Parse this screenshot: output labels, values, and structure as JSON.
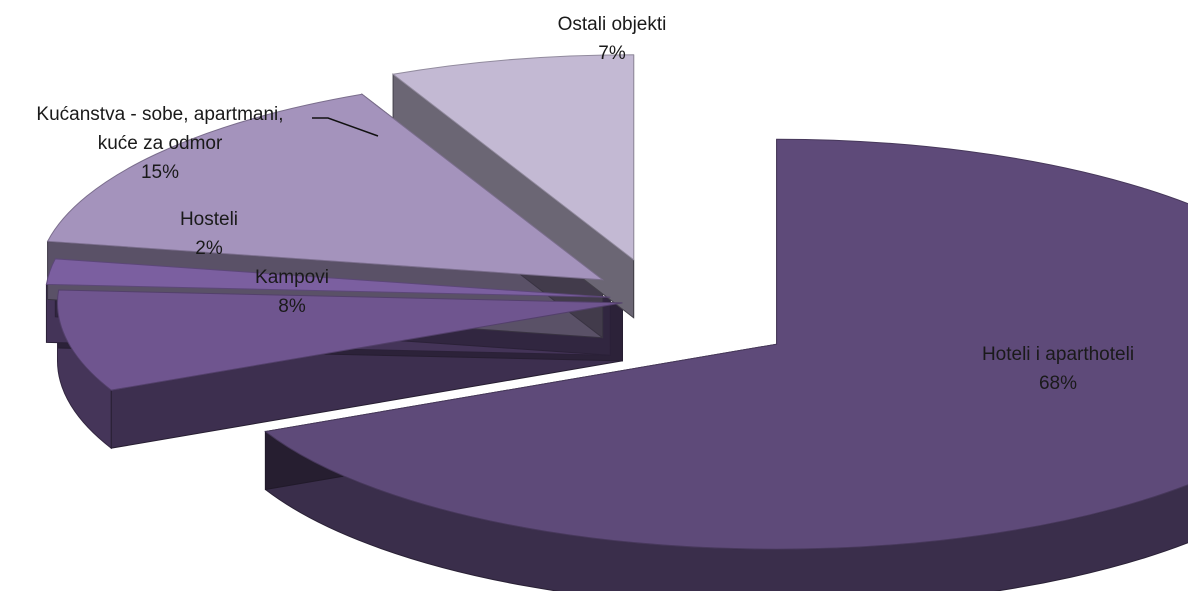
{
  "chart_data": {
    "type": "pie",
    "title": "",
    "style": "3d-exploded",
    "slices": [
      {
        "label": "Hoteli i aparthoteli",
        "lines": [
          "Hoteli i aparthoteli"
        ],
        "value": 68,
        "pct_label": "68%",
        "color": "#5e4a79"
      },
      {
        "label": "Kampovi",
        "lines": [
          "Kampovi"
        ],
        "value": 8,
        "pct_label": "8%",
        "color": "#6f558f"
      },
      {
        "label": "Hosteli",
        "lines": [
          "Hosteli"
        ],
        "value": 2,
        "pct_label": "2%",
        "color": "#7b5fa0"
      },
      {
        "label": "Kućanstva - sobe, apartmani, kuće za odmor",
        "lines": [
          "Kućanstva - sobe, apartmani,",
          "kuće za odmor"
        ],
        "value": 15,
        "pct_label": "15%",
        "color": "#a493bc"
      },
      {
        "label": "Ostali objekti",
        "lines": [
          "Ostali objekti"
        ],
        "value": 7,
        "pct_label": "7%",
        "color": "#c3b9d3"
      }
    ]
  }
}
